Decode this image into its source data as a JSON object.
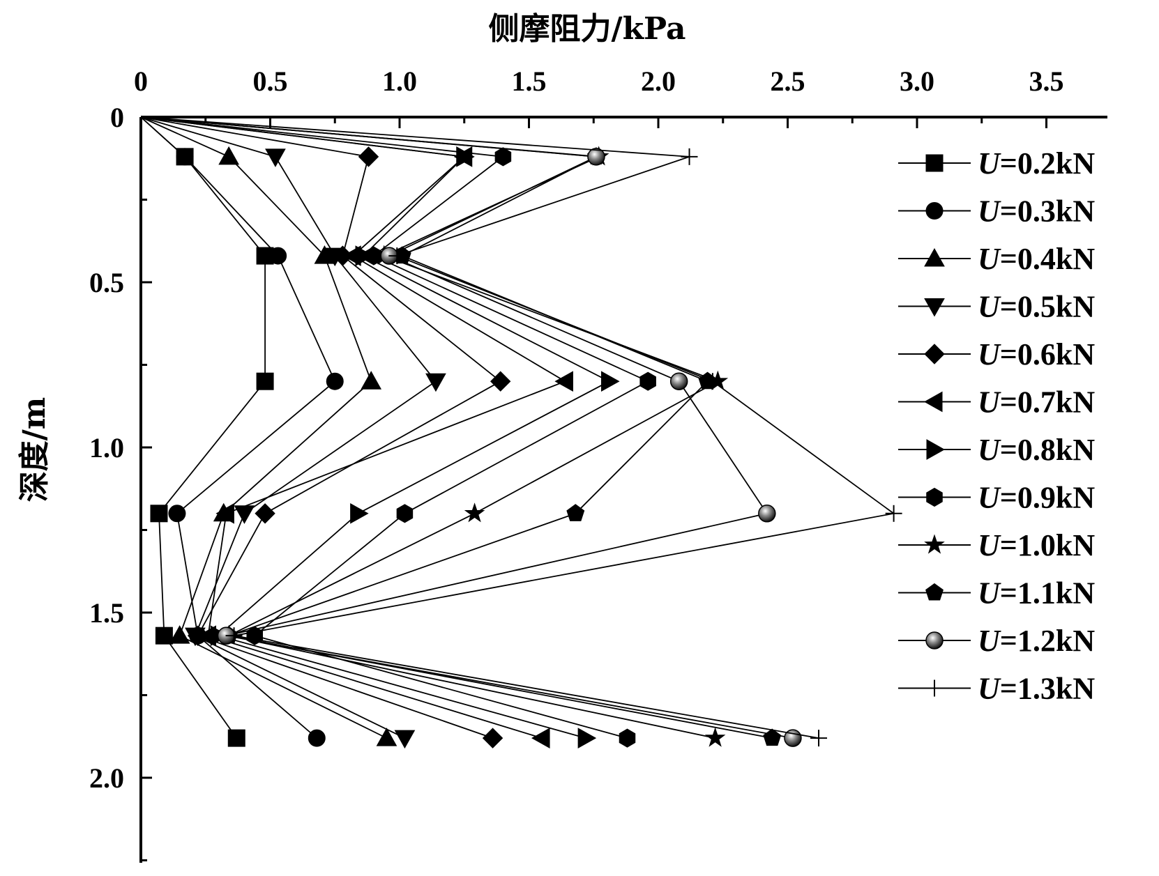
{
  "chart_data": {
    "type": "line",
    "orientation": "depth-profile",
    "xlabel": "侧摩阻力/kPa",
    "ylabel": "深度/m",
    "xlim": [
      0,
      3.8
    ],
    "ylim": [
      0,
      2.25
    ],
    "x_axis_position": "top",
    "y_axis_inverted": true,
    "x_ticks": [
      "0",
      "0.5",
      "1.0",
      "1.5",
      "2.0",
      "2.5",
      "3.0",
      "3.5"
    ],
    "y_ticks": [
      "0",
      "0.5",
      "1.0",
      "1.5",
      "2.0"
    ],
    "legend_position": "right",
    "grid": false,
    "depths": [
      0,
      0.12,
      0.42,
      0.8,
      1.2,
      1.57,
      1.88
    ],
    "series": [
      {
        "name": "U=0.2kN",
        "marker": "square",
        "x": [
          0,
          0.17,
          0.48,
          0.48,
          0.07,
          0.09,
          0.37
        ]
      },
      {
        "name": "U=0.3kN",
        "marker": "circle",
        "x": [
          0,
          0.17,
          0.53,
          0.75,
          0.14,
          0.22,
          0.68
        ]
      },
      {
        "name": "U=0.4kN",
        "marker": "triangle-up",
        "x": [
          0,
          0.34,
          0.71,
          0.89,
          0.32,
          0.15,
          0.95
        ]
      },
      {
        "name": "U=0.5kN",
        "marker": "triangle-down",
        "x": [
          0,
          0.52,
          0.75,
          1.14,
          0.4,
          0.21,
          1.02
        ]
      },
      {
        "name": "U=0.6kN",
        "marker": "diamond",
        "x": [
          0,
          0.88,
          0.78,
          1.39,
          0.48,
          0.22,
          1.36
        ]
      },
      {
        "name": "U=0.7kN",
        "marker": "triangle-left",
        "x": [
          0,
          1.25,
          0.82,
          1.64,
          0.33,
          0.26,
          1.55
        ]
      },
      {
        "name": "U=0.8kN",
        "marker": "triangle-right",
        "x": [
          0,
          1.25,
          0.86,
          1.81,
          0.84,
          0.3,
          1.72
        ]
      },
      {
        "name": "U=0.9kN",
        "marker": "hexagon",
        "x": [
          0,
          1.4,
          0.9,
          1.96,
          1.02,
          0.44,
          1.88
        ]
      },
      {
        "name": "U=1.0kN",
        "marker": "star",
        "x": [
          0,
          1.77,
          0.94,
          2.23,
          1.29,
          0.34,
          2.22
        ]
      },
      {
        "name": "U=1.1kN",
        "marker": "pentagon",
        "x": [
          0,
          1.76,
          1.01,
          2.19,
          1.68,
          0.34,
          2.44
        ]
      },
      {
        "name": "U=1.2kN",
        "marker": "sphere",
        "x": [
          0,
          1.76,
          0.96,
          2.08,
          2.42,
          0.33,
          2.52
        ]
      },
      {
        "name": "U=1.3kN",
        "marker": "plus",
        "x": [
          0,
          2.12,
          0.99,
          2.21,
          2.91,
          0.36,
          2.62
        ]
      }
    ]
  },
  "legend_items": [
    {
      "prefix": "U",
      "suffix": "=0.2kN"
    },
    {
      "prefix": "U",
      "suffix": "=0.3kN"
    },
    {
      "prefix": "U",
      "suffix": "=0.4kN"
    },
    {
      "prefix": "U",
      "suffix": "=0.5kN"
    },
    {
      "prefix": "U",
      "suffix": "=0.6kN"
    },
    {
      "prefix": "U",
      "suffix": "=0.7kN"
    },
    {
      "prefix": "U",
      "suffix": "=0.8kN"
    },
    {
      "prefix": "U",
      "suffix": "=0.9kN"
    },
    {
      "prefix": "U",
      "suffix": "=1.0kN"
    },
    {
      "prefix": "U",
      "suffix": "=1.1kN"
    },
    {
      "prefix": "U",
      "suffix": "=1.2kN"
    },
    {
      "prefix": "U",
      "suffix": "=1.3kN"
    }
  ]
}
